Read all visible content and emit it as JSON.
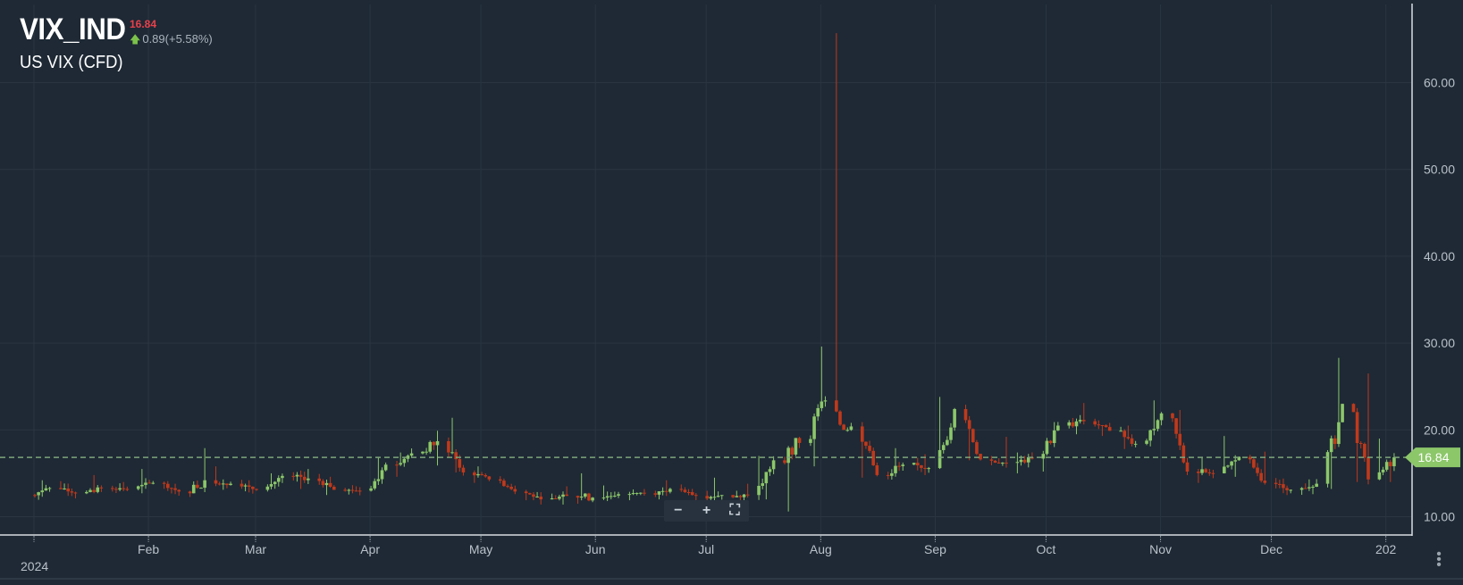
{
  "instrument": {
    "symbol": "VIX_IND",
    "last_price": "16.84",
    "change": "0.89(+5.58%)",
    "description": "US VIX (CFD)"
  },
  "price_tag": "16.84",
  "colors": {
    "background": "#1e2935",
    "up": "#8cc76a",
    "down": "#c0391b",
    "grid": "#2a3541",
    "axis_text": "#b9c1c9",
    "price_line": "#7ea57a"
  },
  "icons": [
    "arrow-up-icon",
    "zoom-out-icon",
    "zoom-in-icon",
    "fullscreen-icon",
    "more-vertical-icon"
  ],
  "chart_data": {
    "type": "candlestick",
    "title": "VIX_IND",
    "y_axis": {
      "side": "right",
      "range": [
        8,
        69
      ],
      "ticks": [
        "10.00",
        "20.00",
        "30.00",
        "40.00",
        "50.00",
        "60.00"
      ]
    },
    "x_axis": {
      "ticks": [
        "2024",
        "Feb",
        "Mar",
        "Apr",
        "May",
        "Jun",
        "Jul",
        "Aug",
        "Sep",
        "Oct",
        "Nov",
        "Dec",
        "202"
      ]
    },
    "last_close": 16.84,
    "grid": true,
    "weekly_ohlc": [
      {
        "week": "Jan 1",
        "o": 12.5,
        "h": 14.2,
        "l": 12.3,
        "c": 13.3
      },
      {
        "week": "Jan 8",
        "o": 13.3,
        "h": 14.1,
        "l": 12.4,
        "c": 12.7
      },
      {
        "week": "Jan 15",
        "o": 12.7,
        "h": 14.8,
        "l": 12.8,
        "c": 13.3
      },
      {
        "week": "Jan 22",
        "o": 13.3,
        "h": 14.0,
        "l": 12.9,
        "c": 13.2
      },
      {
        "week": "Jan 29",
        "o": 13.2,
        "h": 15.5,
        "l": 12.7,
        "c": 13.9
      },
      {
        "week": "Feb 5",
        "o": 13.9,
        "h": 14.1,
        "l": 12.6,
        "c": 12.9
      },
      {
        "week": "Feb 12",
        "o": 12.9,
        "h": 17.9,
        "l": 12.7,
        "c": 14.2
      },
      {
        "week": "Feb 19",
        "o": 14.2,
        "h": 15.8,
        "l": 13.1,
        "c": 13.8
      },
      {
        "week": "Feb 26",
        "o": 13.8,
        "h": 14.2,
        "l": 12.8,
        "c": 13.1
      },
      {
        "week": "Mar 4",
        "o": 13.1,
        "h": 15.0,
        "l": 12.9,
        "c": 14.7
      },
      {
        "week": "Mar 11",
        "o": 14.7,
        "h": 15.5,
        "l": 13.2,
        "c": 14.4
      },
      {
        "week": "Mar 18",
        "o": 14.4,
        "h": 14.6,
        "l": 12.5,
        "c": 13.1
      },
      {
        "week": "Mar 25",
        "o": 13.1,
        "h": 13.4,
        "l": 12.7,
        "c": 13.0
      },
      {
        "week": "Apr 1",
        "o": 13.0,
        "h": 16.9,
        "l": 12.9,
        "c": 16.0
      },
      {
        "week": "Apr 8",
        "o": 16.0,
        "h": 17.4,
        "l": 14.6,
        "c": 17.3
      },
      {
        "week": "Apr 15",
        "o": 17.3,
        "h": 19.9,
        "l": 15.9,
        "c": 18.7
      },
      {
        "week": "Apr 22",
        "o": 18.7,
        "h": 21.4,
        "l": 15.1,
        "c": 15.1
      },
      {
        "week": "Apr 29",
        "o": 15.1,
        "h": 15.8,
        "l": 13.9,
        "c": 14.3
      },
      {
        "week": "May 6",
        "o": 14.3,
        "h": 14.4,
        "l": 12.6,
        "c": 12.9
      },
      {
        "week": "May 13",
        "o": 12.9,
        "h": 13.1,
        "l": 11.9,
        "c": 12.0
      },
      {
        "week": "May 20",
        "o": 12.0,
        "h": 13.5,
        "l": 11.4,
        "c": 12.4
      },
      {
        "week": "May 27",
        "o": 12.4,
        "h": 15.0,
        "l": 11.5,
        "c": 12.2
      },
      {
        "week": "Jun 3",
        "o": 12.2,
        "h": 13.6,
        "l": 12.0,
        "c": 12.6
      },
      {
        "week": "Jun 10",
        "o": 12.6,
        "h": 13.2,
        "l": 11.9,
        "c": 12.7
      },
      {
        "week": "Jun 17",
        "o": 12.7,
        "h": 14.2,
        "l": 12.0,
        "c": 13.2
      },
      {
        "week": "Jun 24",
        "o": 13.2,
        "h": 13.4,
        "l": 11.9,
        "c": 12.4
      },
      {
        "week": "Jul 1",
        "o": 12.4,
        "h": 14.5,
        "l": 11.9,
        "c": 12.5
      },
      {
        "week": "Jul 8",
        "o": 12.5,
        "h": 13.8,
        "l": 11.7,
        "c": 12.5
      },
      {
        "week": "Jul 15",
        "o": 12.5,
        "h": 17.0,
        "l": 12.0,
        "c": 16.5
      },
      {
        "week": "Jul 22",
        "o": 16.5,
        "h": 19.2,
        "l": 10.6,
        "c": 18.5
      },
      {
        "week": "Jul 29",
        "o": 18.5,
        "h": 29.6,
        "l": 15.8,
        "c": 23.4
      },
      {
        "week": "Aug 5",
        "o": 23.4,
        "h": 65.7,
        "l": 20.0,
        "c": 20.4
      },
      {
        "week": "Aug 12",
        "o": 20.4,
        "h": 20.9,
        "l": 14.5,
        "c": 14.8
      },
      {
        "week": "Aug 19",
        "o": 14.8,
        "h": 17.9,
        "l": 14.3,
        "c": 16.0
      },
      {
        "week": "Aug 26",
        "o": 16.0,
        "h": 17.2,
        "l": 14.8,
        "c": 15.6
      },
      {
        "week": "Sep 2",
        "o": 15.6,
        "h": 23.8,
        "l": 15.5,
        "c": 22.4
      },
      {
        "week": "Sep 9",
        "o": 22.4,
        "h": 22.9,
        "l": 16.5,
        "c": 16.6
      },
      {
        "week": "Sep 16",
        "o": 16.6,
        "h": 19.2,
        "l": 16.2,
        "c": 16.2
      },
      {
        "week": "Sep 23",
        "o": 16.2,
        "h": 17.4,
        "l": 15.0,
        "c": 16.7
      },
      {
        "week": "Sep 30",
        "o": 16.7,
        "h": 20.9,
        "l": 15.2,
        "c": 20.5
      },
      {
        "week": "Oct 7",
        "o": 20.5,
        "h": 23.1,
        "l": 19.5,
        "c": 21.0
      },
      {
        "week": "Oct 14",
        "o": 21.0,
        "h": 21.1,
        "l": 19.3,
        "c": 19.9
      },
      {
        "week": "Oct 21",
        "o": 19.9,
        "h": 20.5,
        "l": 17.8,
        "c": 18.4
      },
      {
        "week": "Oct 28",
        "o": 18.4,
        "h": 23.4,
        "l": 18.1,
        "c": 21.9
      },
      {
        "week": "Nov 4",
        "o": 21.9,
        "h": 22.3,
        "l": 14.8,
        "c": 15.2
      },
      {
        "week": "Nov 11",
        "o": 15.2,
        "h": 16.9,
        "l": 13.9,
        "c": 15.0
      },
      {
        "week": "Nov 18",
        "o": 15.0,
        "h": 19.3,
        "l": 14.6,
        "c": 16.9
      },
      {
        "week": "Nov 25",
        "o": 16.9,
        "h": 17.5,
        "l": 13.7,
        "c": 13.9
      },
      {
        "week": "Dec 2",
        "o": 13.9,
        "h": 14.4,
        "l": 12.7,
        "c": 13.1
      },
      {
        "week": "Dec 9",
        "o": 13.1,
        "h": 14.3,
        "l": 12.6,
        "c": 13.8
      },
      {
        "week": "Dec 16",
        "o": 13.8,
        "h": 28.3,
        "l": 13.2,
        "c": 23.0
      },
      {
        "week": "Dec 23",
        "o": 23.0,
        "h": 26.5,
        "l": 14.0,
        "c": 14.3
      },
      {
        "week": "Dec 30",
        "o": 14.3,
        "h": 19.0,
        "l": 14.0,
        "c": 16.84
      }
    ]
  }
}
